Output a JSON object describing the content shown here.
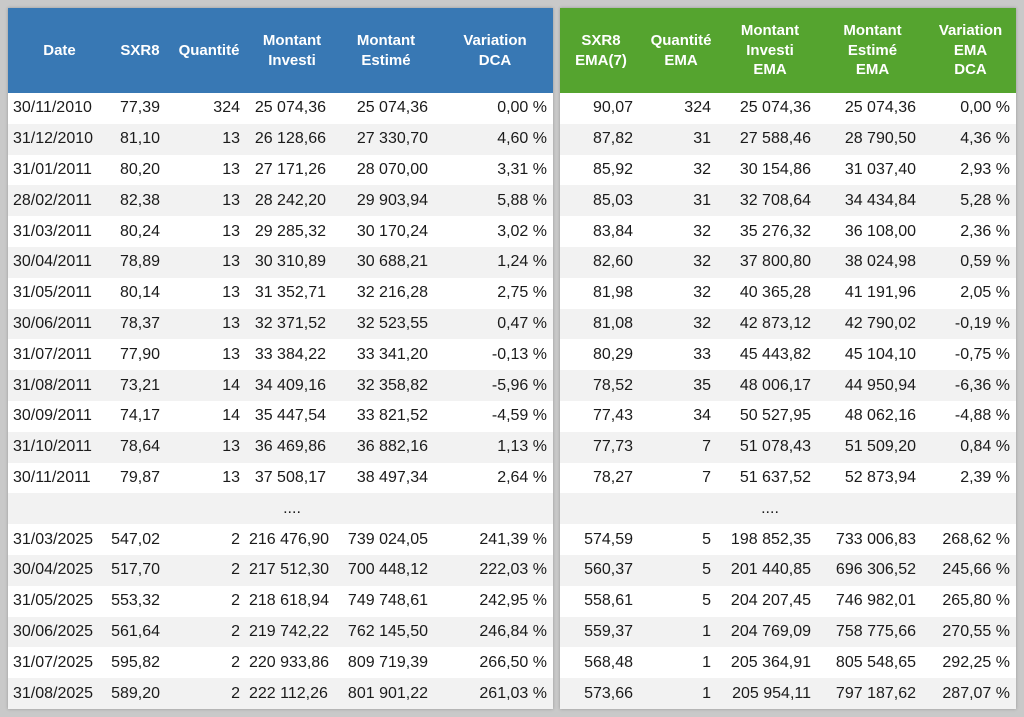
{
  "colors": {
    "left_header_bg": "#3878b4",
    "right_header_bg": "#55a42f",
    "row_alt_bg": "#f2f2f2",
    "row_bg": "#ffffff",
    "header_text": "#ffffff",
    "frame_bg": "#c9c9c9"
  },
  "left_table": {
    "headers": [
      "Date",
      "SXR8",
      "Quantité",
      "Montant\nInvesti",
      "Montant\nEstimé",
      "Variation\nDCA"
    ]
  },
  "right_table": {
    "headers": [
      "SXR8\nEMA(7)",
      "Quantité\nEMA",
      "Montant\nInvesti\nEMA",
      "Montant\nEstimé\nEMA",
      "Variation\nEMA\nDCA"
    ]
  },
  "ellipsis_label": "....",
  "rows": [
    {
      "date": "30/11/2010",
      "sxr8": "77,39",
      "quantite": "324",
      "investi": "25 074,36",
      "estime": "25 074,36",
      "variation": "0,00 %",
      "ema_sxr8": "90,07",
      "ema_quantite": "324",
      "ema_investi": "25 074,36",
      "ema_estime": "25 074,36",
      "ema_variation": "0,00 %"
    },
    {
      "date": "31/12/2010",
      "sxr8": "81,10",
      "quantite": "13",
      "investi": "26 128,66",
      "estime": "27 330,70",
      "variation": "4,60 %",
      "ema_sxr8": "87,82",
      "ema_quantite": "31",
      "ema_investi": "27 588,46",
      "ema_estime": "28 790,50",
      "ema_variation": "4,36 %"
    },
    {
      "date": "31/01/2011",
      "sxr8": "80,20",
      "quantite": "13",
      "investi": "27 171,26",
      "estime": "28 070,00",
      "variation": "3,31 %",
      "ema_sxr8": "85,92",
      "ema_quantite": "32",
      "ema_investi": "30 154,86",
      "ema_estime": "31 037,40",
      "ema_variation": "2,93 %"
    },
    {
      "date": "28/02/2011",
      "sxr8": "82,38",
      "quantite": "13",
      "investi": "28 242,20",
      "estime": "29 903,94",
      "variation": "5,88 %",
      "ema_sxr8": "85,03",
      "ema_quantite": "31",
      "ema_investi": "32 708,64",
      "ema_estime": "34 434,84",
      "ema_variation": "5,28 %"
    },
    {
      "date": "31/03/2011",
      "sxr8": "80,24",
      "quantite": "13",
      "investi": "29 285,32",
      "estime": "30 170,24",
      "variation": "3,02 %",
      "ema_sxr8": "83,84",
      "ema_quantite": "32",
      "ema_investi": "35 276,32",
      "ema_estime": "36 108,00",
      "ema_variation": "2,36 %"
    },
    {
      "date": "30/04/2011",
      "sxr8": "78,89",
      "quantite": "13",
      "investi": "30 310,89",
      "estime": "30 688,21",
      "variation": "1,24 %",
      "ema_sxr8": "82,60",
      "ema_quantite": "32",
      "ema_investi": "37 800,80",
      "ema_estime": "38 024,98",
      "ema_variation": "0,59 %"
    },
    {
      "date": "31/05/2011",
      "sxr8": "80,14",
      "quantite": "13",
      "investi": "31 352,71",
      "estime": "32 216,28",
      "variation": "2,75 %",
      "ema_sxr8": "81,98",
      "ema_quantite": "32",
      "ema_investi": "40 365,28",
      "ema_estime": "41 191,96",
      "ema_variation": "2,05 %"
    },
    {
      "date": "30/06/2011",
      "sxr8": "78,37",
      "quantite": "13",
      "investi": "32 371,52",
      "estime": "32 523,55",
      "variation": "0,47 %",
      "ema_sxr8": "81,08",
      "ema_quantite": "32",
      "ema_investi": "42 873,12",
      "ema_estime": "42 790,02",
      "ema_variation": "-0,19 %"
    },
    {
      "date": "31/07/2011",
      "sxr8": "77,90",
      "quantite": "13",
      "investi": "33 384,22",
      "estime": "33 341,20",
      "variation": "-0,13 %",
      "ema_sxr8": "80,29",
      "ema_quantite": "33",
      "ema_investi": "45 443,82",
      "ema_estime": "45 104,10",
      "ema_variation": "-0,75 %"
    },
    {
      "date": "31/08/2011",
      "sxr8": "73,21",
      "quantite": "14",
      "investi": "34 409,16",
      "estime": "32 358,82",
      "variation": "-5,96 %",
      "ema_sxr8": "78,52",
      "ema_quantite": "35",
      "ema_investi": "48 006,17",
      "ema_estime": "44 950,94",
      "ema_variation": "-6,36 %"
    },
    {
      "date": "30/09/2011",
      "sxr8": "74,17",
      "quantite": "14",
      "investi": "35 447,54",
      "estime": "33 821,52",
      "variation": "-4,59 %",
      "ema_sxr8": "77,43",
      "ema_quantite": "34",
      "ema_investi": "50 527,95",
      "ema_estime": "48 062,16",
      "ema_variation": "-4,88 %"
    },
    {
      "date": "31/10/2011",
      "sxr8": "78,64",
      "quantite": "13",
      "investi": "36 469,86",
      "estime": "36 882,16",
      "variation": "1,13 %",
      "ema_sxr8": "77,73",
      "ema_quantite": "7",
      "ema_investi": "51 078,43",
      "ema_estime": "51 509,20",
      "ema_variation": "0,84 %"
    },
    {
      "date": "30/11/2011",
      "sxr8": "79,87",
      "quantite": "13",
      "investi": "37 508,17",
      "estime": "38 497,34",
      "variation": "2,64 %",
      "ema_sxr8": "78,27",
      "ema_quantite": "7",
      "ema_investi": "51 637,52",
      "ema_estime": "52 873,94",
      "ema_variation": "2,39 %"
    },
    {
      "ellipsis": true
    },
    {
      "date": "31/03/2025",
      "sxr8": "547,02",
      "quantite": "2",
      "investi": "216 476,90",
      "estime": "739 024,05",
      "variation": "241,39 %",
      "ema_sxr8": "574,59",
      "ema_quantite": "5",
      "ema_investi": "198 852,35",
      "ema_estime": "733 006,83",
      "ema_variation": "268,62 %"
    },
    {
      "date": "30/04/2025",
      "sxr8": "517,70",
      "quantite": "2",
      "investi": "217 512,30",
      "estime": "700 448,12",
      "variation": "222,03 %",
      "ema_sxr8": "560,37",
      "ema_quantite": "5",
      "ema_investi": "201 440,85",
      "ema_estime": "696 306,52",
      "ema_variation": "245,66 %"
    },
    {
      "date": "31/05/2025",
      "sxr8": "553,32",
      "quantite": "2",
      "investi": "218 618,94",
      "estime": "749 748,61",
      "variation": "242,95 %",
      "ema_sxr8": "558,61",
      "ema_quantite": "5",
      "ema_investi": "204 207,45",
      "ema_estime": "746 982,01",
      "ema_variation": "265,80 %"
    },
    {
      "date": "30/06/2025",
      "sxr8": "561,64",
      "quantite": "2",
      "investi": "219 742,22",
      "estime": "762 145,50",
      "variation": "246,84 %",
      "ema_sxr8": "559,37",
      "ema_quantite": "1",
      "ema_investi": "204 769,09",
      "ema_estime": "758 775,66",
      "ema_variation": "270,55 %"
    },
    {
      "date": "31/07/2025",
      "sxr8": "595,82",
      "quantite": "2",
      "investi": "220 933,86",
      "estime": "809 719,39",
      "variation": "266,50 %",
      "ema_sxr8": "568,48",
      "ema_quantite": "1",
      "ema_investi": "205 364,91",
      "ema_estime": "805 548,65",
      "ema_variation": "292,25 %"
    },
    {
      "date": "31/08/2025",
      "sxr8": "589,20",
      "quantite": "2",
      "investi": "222 112,26",
      "estime": "801 901,22",
      "variation": "261,03 %",
      "ema_sxr8": "573,66",
      "ema_quantite": "1",
      "ema_investi": "205 954,11",
      "ema_estime": "797 187,62",
      "ema_variation": "287,07 %"
    }
  ]
}
